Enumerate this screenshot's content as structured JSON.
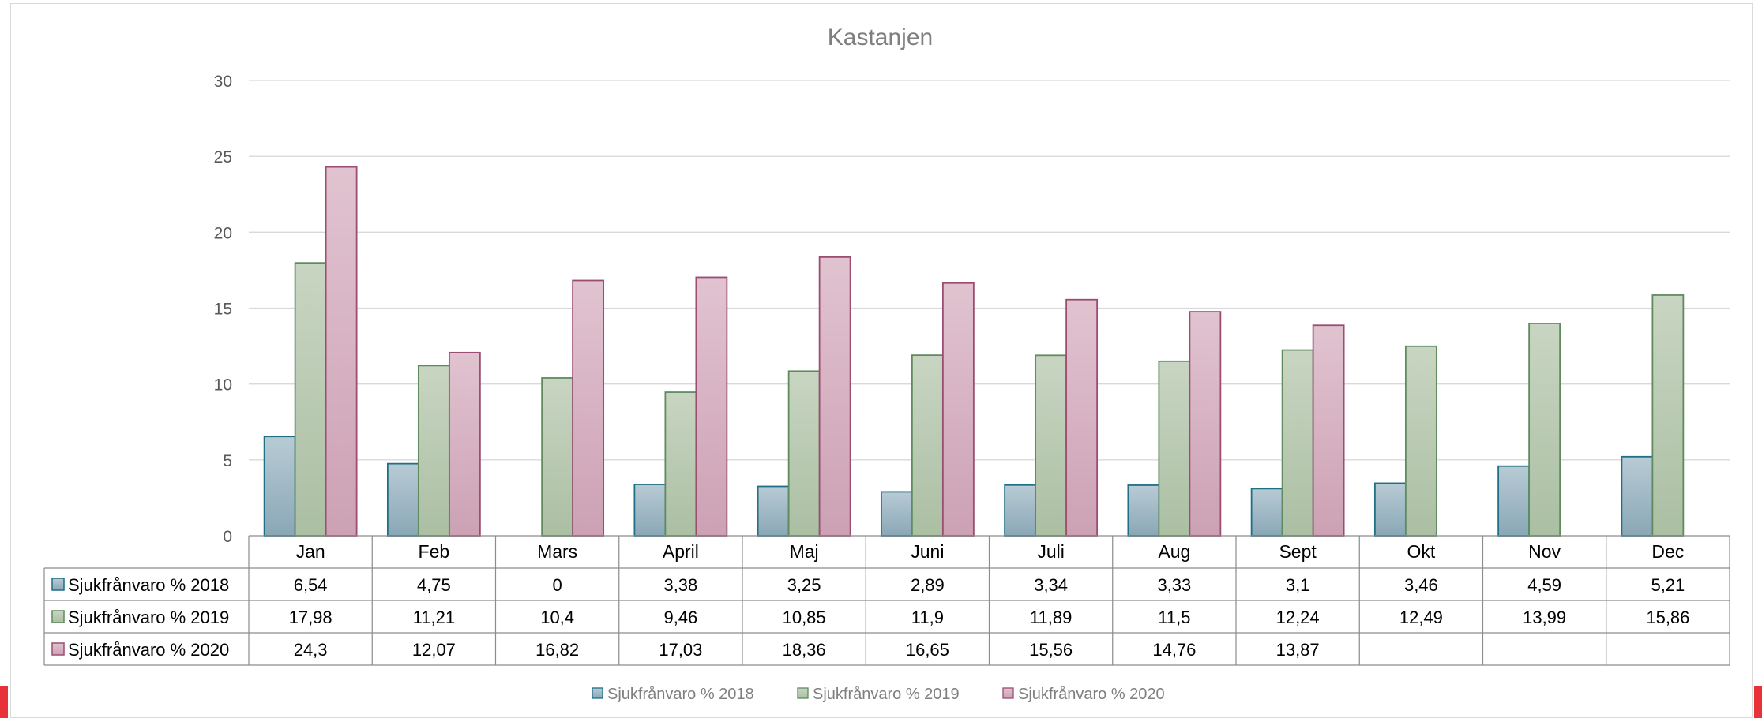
{
  "chart_data": {
    "type": "bar",
    "title": "Kastanjen",
    "categories": [
      "Jan",
      "Feb",
      "Mars",
      "April",
      "Maj",
      "Juni",
      "Juli",
      "Aug",
      "Sept",
      "Okt",
      "Nov",
      "Dec"
    ],
    "series": [
      {
        "name": "Sjukfrånvaro % 2018",
        "values": [
          6.54,
          4.75,
          0,
          3.38,
          3.25,
          2.89,
          3.34,
          3.33,
          3.1,
          3.46,
          4.59,
          5.21
        ],
        "labels": [
          "6,54",
          "4,75",
          "0",
          "3,38",
          "3,25",
          "2,89",
          "3,34",
          "3,33",
          "3,1",
          "3,46",
          "4,59",
          "5,21"
        ],
        "color": "#8aa7b6",
        "stroke": "#1f6f86"
      },
      {
        "name": "Sjukfrånvaro % 2019",
        "values": [
          17.98,
          11.21,
          10.4,
          9.46,
          10.85,
          11.9,
          11.89,
          11.5,
          12.24,
          12.49,
          13.99,
          15.86
        ],
        "labels": [
          "17,98",
          "11,21",
          "10,4",
          "9,46",
          "10,85",
          "11,9",
          "11,89",
          "11,5",
          "12,24",
          "12,49",
          "13,99",
          "15,86"
        ],
        "color": "#abbfa3",
        "stroke": "#5f8b5f"
      },
      {
        "name": "Sjukfrånvaro % 2020",
        "values": [
          24.3,
          12.07,
          16.82,
          17.03,
          18.36,
          16.65,
          15.56,
          14.76,
          13.87,
          null,
          null,
          null
        ],
        "labels": [
          "24,3",
          "12,07",
          "16,82",
          "17,03",
          "18,36",
          "16,65",
          "15,56",
          "14,76",
          "13,87",
          "",
          "",
          ""
        ],
        "color": "#cca1b4",
        "stroke": "#9b4d72"
      }
    ],
    "ylim": [
      0,
      30
    ],
    "yticks": [
      0,
      5,
      10,
      15,
      20,
      25,
      30
    ],
    "grid": true,
    "data_table": true,
    "legend": "bottom-center"
  }
}
